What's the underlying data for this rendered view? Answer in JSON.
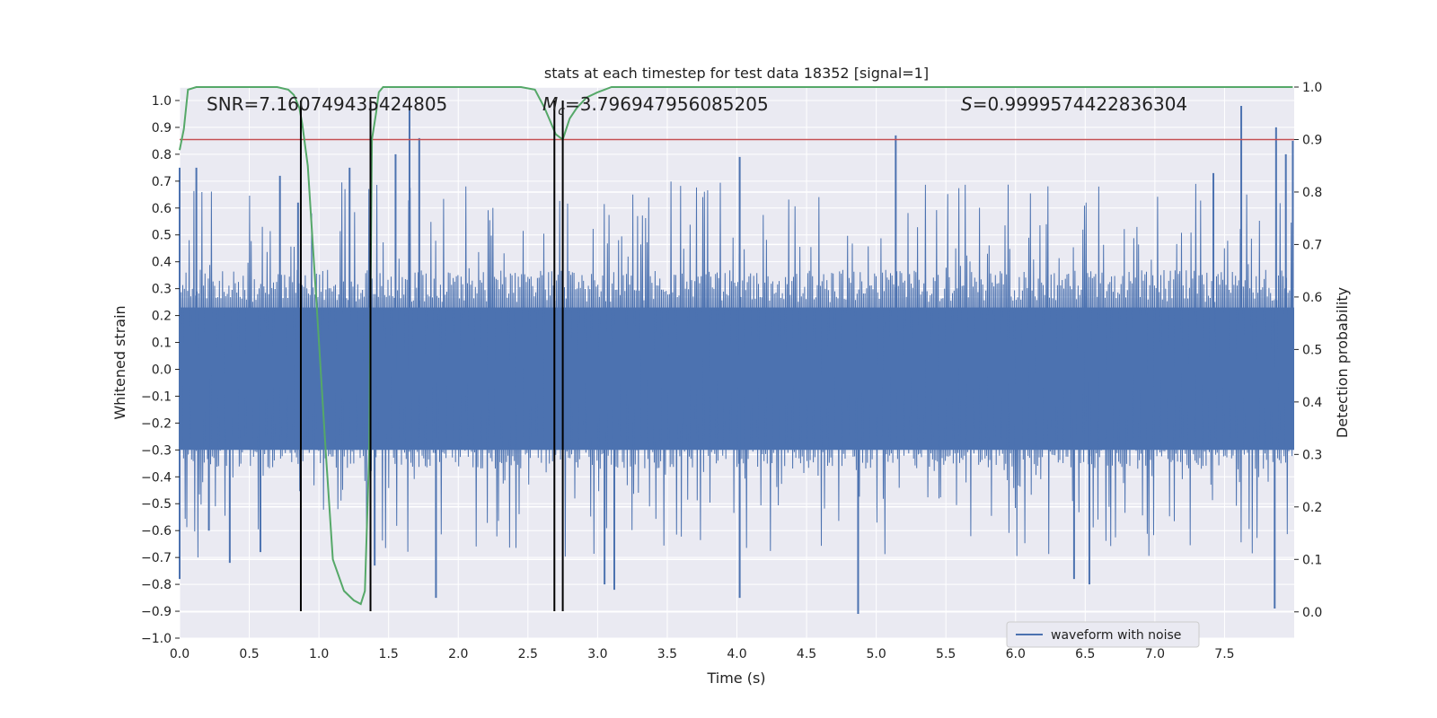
{
  "chart_data": {
    "type": "line",
    "title": "stats at each timestep for test data 18352 [signal=1]",
    "xlabel": "Time (s)",
    "ylabel_left": "Whitened strain",
    "ylabel_right": "Detection probability",
    "xlim": [
      0.0,
      8.0
    ],
    "ylim_left": [
      -1.0,
      1.05
    ],
    "ylim_right": [
      -0.05,
      1.0
    ],
    "x_ticks": [
      "0.0",
      "0.5",
      "1.0",
      "1.5",
      "2.0",
      "2.5",
      "3.0",
      "3.5",
      "4.0",
      "4.5",
      "5.0",
      "5.5",
      "6.0",
      "6.5",
      "7.0",
      "7.5"
    ],
    "y_left_ticks": [
      "1.0",
      "0.9",
      "0.8",
      "0.7",
      "0.6",
      "0.5",
      "0.4",
      "0.3",
      "0.2",
      "0.1",
      "0.0",
      "-0.1",
      "-0.2",
      "-0.3",
      "-0.4",
      "-0.5",
      "-0.6",
      "-0.7",
      "-0.8",
      "-0.9",
      "-1.0"
    ],
    "y_right_ticks": [
      "1.0",
      "0.9",
      "0.8",
      "0.7",
      "0.6",
      "0.5",
      "0.4",
      "0.3",
      "0.2",
      "0.1",
      "0.0"
    ],
    "annotations": {
      "snr": "SNR=7.160749435424805",
      "mc_symbol": "M",
      "mc_sub": "c",
      "mc_value": "=3.796947956085205",
      "s_symbol": "S",
      "s_value": "=0.9999574422836304"
    },
    "legend": {
      "position": "lower-right",
      "entries": [
        "waveform with noise"
      ]
    },
    "grid": true,
    "threshold_line": {
      "axis": "right",
      "value": 0.9,
      "color": "#c44e52"
    },
    "vertical_lines": {
      "x": [
        0.87,
        1.37,
        2.69,
        2.75
      ],
      "y_range": [
        -0.9,
        1.0
      ],
      "color": "#000000"
    },
    "waveform_series": {
      "name": "waveform with noise",
      "color": "#4c72b0",
      "spikes": [
        {
          "x": 0.0,
          "y": 0.75
        },
        {
          "x": 0.0,
          "y": -0.78
        },
        {
          "x": 0.12,
          "y": 0.75
        },
        {
          "x": 0.21,
          "y": -0.6
        },
        {
          "x": 0.36,
          "y": -0.72
        },
        {
          "x": 0.58,
          "y": -0.68
        },
        {
          "x": 0.72,
          "y": 0.72
        },
        {
          "x": 0.85,
          "y": 0.62
        },
        {
          "x": 1.22,
          "y": 0.75
        },
        {
          "x": 1.4,
          "y": -0.73
        },
        {
          "x": 1.55,
          "y": 0.8
        },
        {
          "x": 1.65,
          "y": 0.99
        },
        {
          "x": 1.72,
          "y": 0.86
        },
        {
          "x": 1.84,
          "y": -0.85
        },
        {
          "x": 3.05,
          "y": -0.8
        },
        {
          "x": 3.12,
          "y": -0.82
        },
        {
          "x": 4.02,
          "y": 0.79
        },
        {
          "x": 4.02,
          "y": -0.85
        },
        {
          "x": 4.87,
          "y": -0.91
        },
        {
          "x": 5.14,
          "y": 0.87
        },
        {
          "x": 6.42,
          "y": -0.78
        },
        {
          "x": 6.53,
          "y": -0.8
        },
        {
          "x": 7.42,
          "y": 0.73
        },
        {
          "x": 7.62,
          "y": 0.98
        },
        {
          "x": 7.87,
          "y": 0.9
        },
        {
          "x": 7.86,
          "y": -0.89
        },
        {
          "x": 7.94,
          "y": 0.8
        },
        {
          "x": 7.99,
          "y": 0.85
        }
      ]
    },
    "probability_series": {
      "color": "#55a868",
      "x": [
        0.0,
        0.03,
        0.06,
        0.12,
        0.2,
        0.3,
        0.5,
        0.7,
        0.78,
        0.82,
        0.86,
        0.88,
        0.92,
        0.98,
        1.05,
        1.1,
        1.18,
        1.25,
        1.3,
        1.33,
        1.36,
        1.38,
        1.41,
        1.43,
        1.46,
        1.6,
        2.0,
        2.45,
        2.55,
        2.62,
        2.7,
        2.75,
        2.8,
        2.85,
        2.92,
        3.0,
        3.1,
        3.2,
        3.5,
        4.0,
        5.0,
        6.0,
        7.0,
        7.99
      ],
      "y": [
        0.88,
        0.92,
        0.995,
        1.0,
        1.0,
        1.0,
        1.0,
        1.0,
        0.995,
        0.985,
        0.96,
        0.93,
        0.85,
        0.6,
        0.3,
        0.1,
        0.04,
        0.022,
        0.015,
        0.04,
        0.3,
        0.9,
        0.95,
        0.99,
        1.0,
        1.0,
        1.0,
        1.0,
        0.995,
        0.96,
        0.91,
        0.9,
        0.94,
        0.96,
        0.98,
        0.99,
        1.0,
        1.0,
        1.0,
        1.0,
        1.0,
        1.0,
        1.0,
        1.0
      ]
    },
    "colors": {
      "background": "#eaeaf2",
      "grid": "#ffffff",
      "axis_text": "#222222"
    }
  }
}
